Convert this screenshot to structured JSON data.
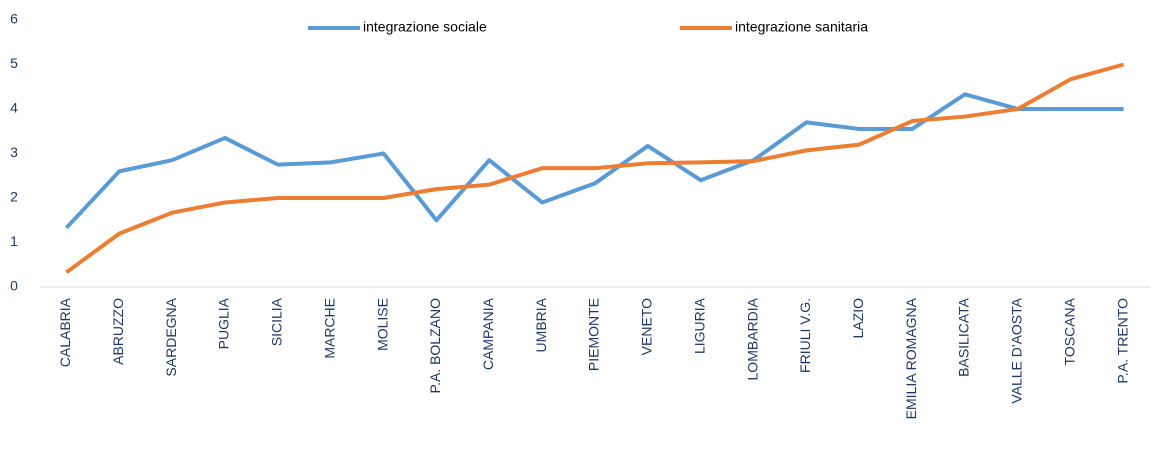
{
  "chart_data": {
    "type": "line",
    "categories": [
      "CALABRIA",
      "ABRUZZO",
      "SARDEGNA",
      "PUGLIA",
      "SICILIA",
      "MARCHE",
      "MOLISE",
      "P.A. BOLZANO",
      "CAMPANIA",
      "UMBRIA",
      "PIEMONTE",
      "VENETO",
      "LIGURIA",
      "LOMBARDIA",
      "FRIULI V.G.",
      "LAZIO",
      "EMILIA ROMAGNA",
      "BASILICATA",
      "VALLE D'AOSTA",
      "TOSCANA",
      "P.A. TRENTO"
    ],
    "series": [
      {
        "name": "integrazione sociale",
        "color": "#5b9bd5",
        "values": [
          1.33,
          2.6,
          2.85,
          3.35,
          2.75,
          2.8,
          3.0,
          1.5,
          2.85,
          1.9,
          2.33,
          3.17,
          2.4,
          2.85,
          3.7,
          3.55,
          3.55,
          4.33,
          4.0,
          4.0,
          4.0
        ]
      },
      {
        "name": "integrazione sanitaria",
        "color": "#ed7d31",
        "values": [
          0.33,
          1.2,
          1.67,
          1.9,
          2.0,
          2.0,
          2.0,
          2.2,
          2.3,
          2.67,
          2.67,
          2.78,
          2.8,
          2.83,
          3.07,
          3.2,
          3.73,
          3.83,
          4.0,
          4.67,
          5.0
        ]
      }
    ],
    "ylim": [
      0,
      6
    ],
    "yticks": [
      0,
      1,
      2,
      3,
      4,
      5,
      6
    ],
    "grid": false,
    "legend": "top"
  }
}
